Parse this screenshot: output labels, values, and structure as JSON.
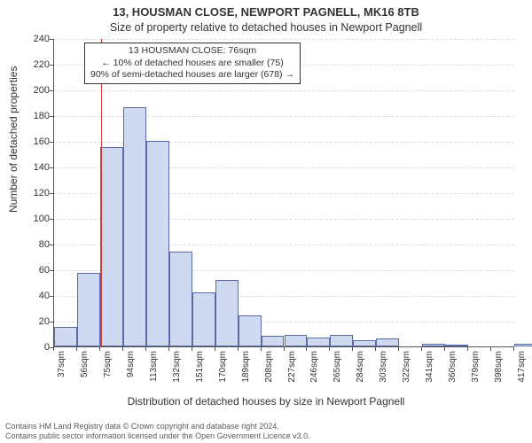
{
  "title": "13, HOUSMAN CLOSE, NEWPORT PAGNELL, MK16 8TB",
  "subtitle": "Size of property relative to detached houses in Newport Pagnell",
  "ylabel": "Number of detached properties",
  "xlabel": "Distribution of detached houses by size in Newport Pagnell",
  "footer1": "Contains HM Land Registry data © Crown copyright and database right 2024.",
  "footer2": "Contains public sector information licensed under the Open Government Licence v3.0.",
  "chart": {
    "type": "bar-histogram",
    "ylim": [
      0,
      240
    ],
    "ytick_step": 20,
    "xticks": [
      37,
      56,
      75,
      94,
      113,
      132,
      151,
      170,
      189,
      208,
      227,
      246,
      265,
      284,
      303,
      322,
      341,
      360,
      379,
      398,
      417
    ],
    "xtick_suffix": "sqm",
    "bars": [
      {
        "x": 37,
        "h": 15
      },
      {
        "x": 56,
        "h": 57
      },
      {
        "x": 75,
        "h": 155
      },
      {
        "x": 94,
        "h": 186
      },
      {
        "x": 113,
        "h": 160
      },
      {
        "x": 132,
        "h": 74
      },
      {
        "x": 151,
        "h": 42
      },
      {
        "x": 170,
        "h": 52
      },
      {
        "x": 189,
        "h": 24
      },
      {
        "x": 208,
        "h": 8
      },
      {
        "x": 227,
        "h": 9
      },
      {
        "x": 246,
        "h": 7
      },
      {
        "x": 265,
        "h": 9
      },
      {
        "x": 284,
        "h": 5
      },
      {
        "x": 303,
        "h": 6
      },
      {
        "x": 322,
        "h": 0
      },
      {
        "x": 341,
        "h": 2
      },
      {
        "x": 360,
        "h": 1
      },
      {
        "x": 379,
        "h": 0
      },
      {
        "x": 398,
        "h": 0
      },
      {
        "x": 417,
        "h": 2
      }
    ],
    "bar_fill": "#cfd9ef",
    "bar_stroke": "#5a6aa8",
    "vline_x": 76,
    "vline_color": "#d04040",
    "grid_color": "#dcdcdc",
    "background_color": "#ffffff",
    "axis_color": "#555555",
    "title_fontsize": 13,
    "label_fontsize": 12,
    "tick_fontsize": 11
  },
  "annotation": {
    "line1": "13 HOUSMAN CLOSE: 76sqm",
    "line2": "← 10% of detached houses are smaller (75)",
    "line3": "90% of semi-detached houses are larger (678) →"
  }
}
